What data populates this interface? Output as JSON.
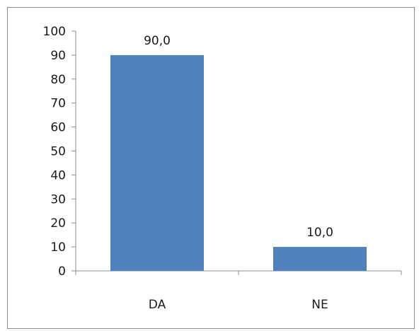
{
  "chart_data": {
    "type": "bar",
    "categories": [
      "DA",
      "NE"
    ],
    "values": [
      90.0,
      10.0
    ],
    "data_labels": [
      "90,0",
      "10,0"
    ],
    "yticks": [
      "0",
      "10",
      "20",
      "30",
      "40",
      "50",
      "60",
      "70",
      "80",
      "90",
      "100"
    ],
    "ylim": [
      0,
      100
    ],
    "grid": false,
    "legend": "none",
    "bar_color": "#4f81bd",
    "axis_color": "#8c8c8c"
  }
}
